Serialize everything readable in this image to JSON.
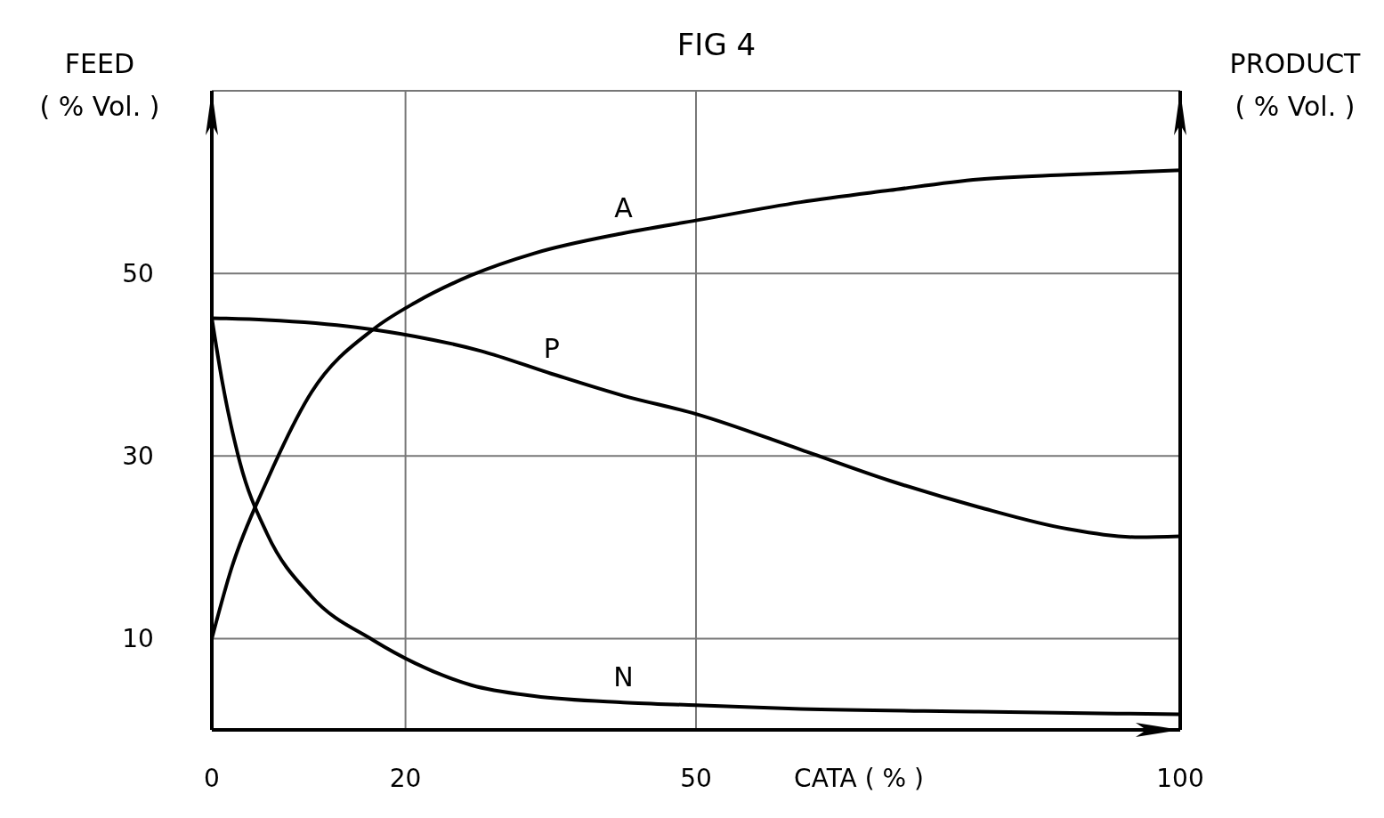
{
  "chart_data": {
    "type": "line",
    "title": "FIG 4",
    "xlabel": "CATA ( % )",
    "ylabel": "FEED\n( % Vol. )",
    "y2label": "PRODUCT\n( % Vol. )",
    "xlim": [
      0,
      100
    ],
    "xticks": [
      0,
      20,
      50,
      100
    ],
    "ylim": [
      0,
      70
    ],
    "yticks": [
      10,
      30,
      50
    ],
    "grid": true,
    "marker": "none",
    "line_style": "solid",
    "series": [
      {
        "name": "A",
        "color": "#000000",
        "x": [
          0,
          2,
          5.7,
          10.3,
          16.7,
          21,
          26.8,
          33.3,
          42.5,
          50,
          60.8,
          70,
          79.2,
          88.4,
          100
        ],
        "values": [
          10,
          17.6,
          27.3,
          37,
          43.9,
          46.8,
          49.8,
          52.2,
          54.4,
          55.8,
          57.8,
          59.1,
          60.3,
          60.8,
          61.3
        ]
      },
      {
        "name": "P",
        "color": "#000000",
        "x": [
          0,
          5.7,
          14.9,
          21,
          27.8,
          35.1,
          42.5,
          50,
          60.8,
          70,
          79.2,
          88.4,
          95.8,
          100
        ],
        "values": [
          45.1,
          44.9,
          44.1,
          43.1,
          41.5,
          39,
          36.6,
          34.6,
          30.7,
          27.3,
          24.4,
          22,
          21.1,
          21.2
        ]
      },
      {
        "name": "N",
        "color": "#000000",
        "x": [
          0,
          1.1,
          2.9,
          5.7,
          10.3,
          16.7,
          21,
          26.8,
          33.3,
          42.5,
          50,
          60.8,
          79.2,
          100
        ],
        "values": [
          45.1,
          38,
          29.3,
          21.5,
          14.6,
          9.8,
          7.3,
          4.9,
          3.7,
          3,
          2.7,
          2.3,
          2,
          1.7
        ]
      }
    ]
  }
}
